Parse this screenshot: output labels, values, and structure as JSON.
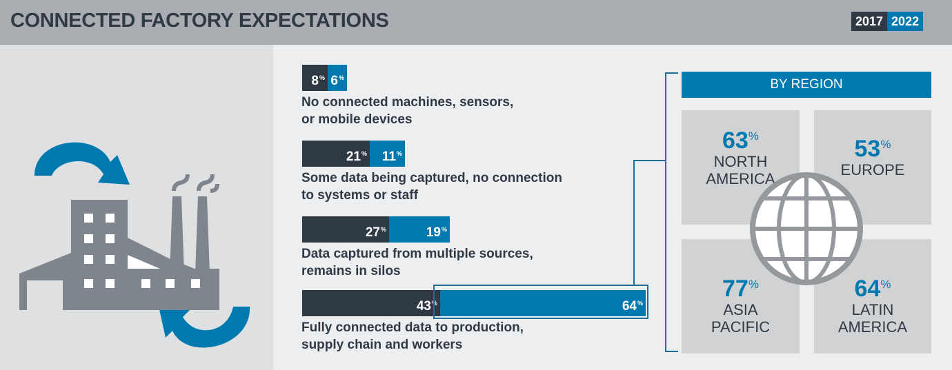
{
  "header": {
    "title": "CONNECTED FACTORY EXPECTATIONS",
    "legend": [
      {
        "label": "2017",
        "color": "#2f3944"
      },
      {
        "label": "2022",
        "color": "#0079b0"
      }
    ]
  },
  "illustration": {
    "icons": [
      "factory-icon",
      "cycle-arrows-icon"
    ],
    "colors": {
      "factory": "#7e858c",
      "arrows": "#0079b0"
    }
  },
  "chart_data": {
    "type": "bar",
    "orientation": "horizontal-stacked-comparison",
    "title": "CONNECTED FACTORY EXPECTATIONS",
    "unit": "%",
    "categories": [
      "No connected machines, sensors, or mobile devices",
      "Some data being captured, no connection to systems or staff",
      "Data captured from multiple sources, remains in silos",
      "Fully connected data to production, supply chain and workers"
    ],
    "category_lines": [
      [
        "No connected machines, sensors,",
        "or mobile devices"
      ],
      [
        "Some data being captured, no connection",
        "to systems or staff"
      ],
      [
        "Data captured from multiple sources,",
        "remains in silos"
      ],
      [
        "Fully connected data to production,",
        "supply chain and workers"
      ]
    ],
    "series": [
      {
        "name": "2017",
        "color": "#2f3944",
        "values": [
          8,
          21,
          27,
          43
        ]
      },
      {
        "name": "2022",
        "color": "#0079b0",
        "values": [
          6,
          11,
          19,
          64
        ]
      }
    ],
    "highlight": {
      "series": "2022",
      "category_index": 3
    },
    "legend_position": "top-right",
    "grid": false
  },
  "region": {
    "heading": "BY REGION",
    "tiles": [
      {
        "value": "63",
        "unit": "%",
        "name_lines": [
          "NORTH",
          "AMERICA"
        ]
      },
      {
        "value": "53",
        "unit": "%",
        "name_lines": [
          "EUROPE"
        ]
      },
      {
        "value": "77",
        "unit": "%",
        "name_lines": [
          "ASIA",
          "PACIFIC"
        ]
      },
      {
        "value": "64",
        "unit": "%",
        "name_lines": [
          "LATIN",
          "AMERICA"
        ]
      }
    ]
  }
}
